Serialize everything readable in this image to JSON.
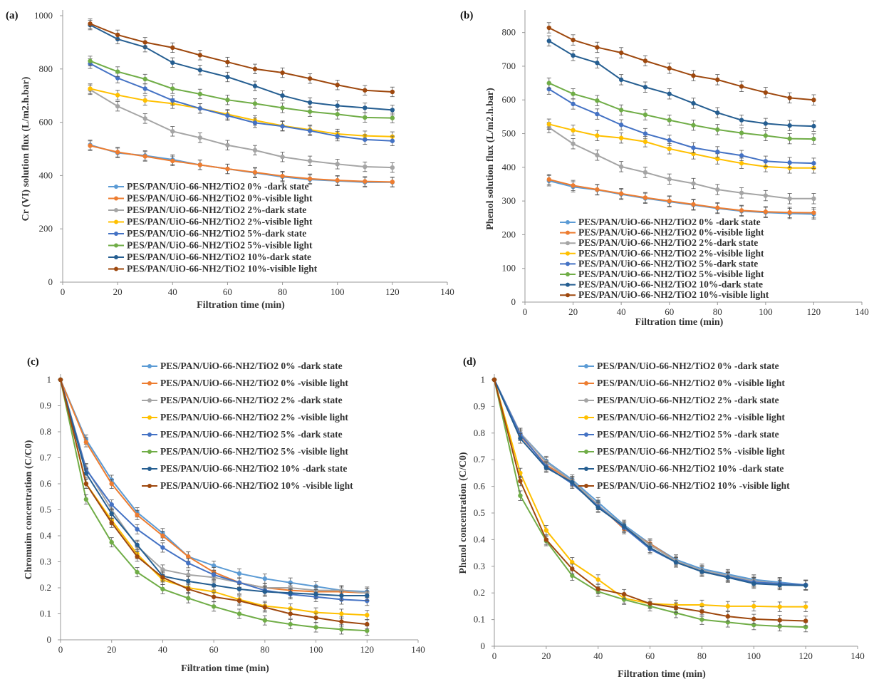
{
  "colors": {
    "s0": "#5B9BD5",
    "s1": "#ED7D31",
    "s2": "#A5A5A5",
    "s3": "#FFC000",
    "s4": "#4472C4",
    "s5": "#70AD47",
    "s6": "#255E91",
    "s7": "#9E480E"
  },
  "chart_data": [
    {
      "type": "line",
      "panel_label": "(a)",
      "xlabel": "Filtration time (min)",
      "ylabel": "Cr (VI) solution flux (L/m2.h.bar)",
      "xlim": [
        0,
        140
      ],
      "ylim": [
        0,
        1000
      ],
      "xticks": [
        "0",
        "20",
        "40",
        "60",
        "80",
        "100",
        "120",
        "140"
      ],
      "yticks": [
        "0",
        "200",
        "400",
        "600",
        "800",
        "1000"
      ],
      "legend_position": "bottom-center",
      "error_bars": true,
      "x": [
        10,
        20,
        30,
        40,
        50,
        60,
        70,
        80,
        90,
        100,
        110,
        120
      ],
      "series": [
        {
          "name": "PES/PAN/UiO-66-NH2/TiO2 0% -dark state",
          "values": [
            515,
            485,
            475,
            460,
            440,
            425,
            410,
            395,
            385,
            380,
            375,
            375
          ]
        },
        {
          "name": "PES/PAN/UiO-66-NH2/TiO2 0%-visible light",
          "values": [
            512,
            488,
            472,
            455,
            440,
            425,
            412,
            398,
            388,
            382,
            378,
            376
          ]
        },
        {
          "name": "PES/PAN/UiO-66-NH2/TiO2 2%-dark state",
          "values": [
            722,
            660,
            614,
            566,
            542,
            514,
            495,
            470,
            455,
            443,
            433,
            430
          ]
        },
        {
          "name": "PES/PAN/UiO-66-NH2/TiO2 2%-visible light",
          "values": [
            726,
            702,
            682,
            670,
            652,
            630,
            607,
            587,
            572,
            556,
            549,
            546
          ]
        },
        {
          "name": "PES/PAN/UiO-66-NH2/TiO2 5%-dark state",
          "values": [
            820,
            766,
            726,
            682,
            652,
            625,
            598,
            585,
            568,
            548,
            535,
            530
          ]
        },
        {
          "name": "PES/PAN/UiO-66-NH2/TiO2 5%-visible light",
          "values": [
            830,
            790,
            762,
            726,
            706,
            684,
            670,
            654,
            640,
            630,
            618,
            616
          ]
        },
        {
          "name": "PES/PAN/UiO-66-NH2/TiO2 10%-dark state",
          "values": [
            965,
            912,
            882,
            824,
            796,
            770,
            736,
            700,
            674,
            662,
            654,
            646
          ]
        },
        {
          "name": "PES/PAN/UiO-66-NH2/TiO2 10%-visible light",
          "values": [
            970,
            928,
            900,
            880,
            852,
            826,
            800,
            786,
            764,
            740,
            720,
            714
          ]
        }
      ]
    },
    {
      "type": "line",
      "panel_label": "(b)",
      "xlabel": "Filtration time (min)",
      "ylabel": "Phenol solution flux (L/m2.h.bar)",
      "xlim": [
        0,
        140
      ],
      "ylim": [
        0,
        850
      ],
      "xticks": [
        "0",
        "20",
        "40",
        "60",
        "80",
        "100",
        "120",
        "140"
      ],
      "yticks": [
        "0",
        "100",
        "200",
        "300",
        "400",
        "500",
        "600",
        "700",
        "800"
      ],
      "legend_position": "bottom-center",
      "error_bars": true,
      "x": [
        10,
        20,
        30,
        40,
        50,
        60,
        70,
        80,
        90,
        100,
        110,
        120
      ],
      "series": [
        {
          "name": "PES/PAN/UiO-66-NH2/TiO2 0% -dark state",
          "values": [
            360,
            342,
            333,
            320,
            308,
            298,
            288,
            278,
            270,
            266,
            263,
            261
          ]
        },
        {
          "name": "PES/PAN/UiO-66-NH2/TiO2 0%-visible light",
          "values": [
            364,
            346,
            334,
            322,
            310,
            300,
            290,
            280,
            272,
            268,
            266,
            265
          ]
        },
        {
          "name": "PES/PAN/UiO-66-NH2/TiO2 2%-dark state",
          "values": [
            518,
            470,
            436,
            402,
            385,
            365,
            352,
            334,
            324,
            316,
            307,
            307
          ]
        },
        {
          "name": "PES/PAN/UiO-66-NH2/TiO2 2%-visible light",
          "values": [
            528,
            510,
            494,
            487,
            476,
            455,
            440,
            425,
            412,
            402,
            398,
            398
          ]
        },
        {
          "name": "PES/PAN/UiO-66-NH2/TiO2 5%-dark state",
          "values": [
            632,
            588,
            558,
            526,
            500,
            480,
            458,
            446,
            435,
            418,
            414,
            412
          ]
        },
        {
          "name": "PES/PAN/UiO-66-NH2/TiO2 5%-visible light",
          "values": [
            650,
            618,
            598,
            570,
            556,
            540,
            525,
            512,
            502,
            494,
            485,
            484
          ]
        },
        {
          "name": "PES/PAN/UiO-66-NH2/TiO2 10%-dark state",
          "values": [
            775,
            732,
            710,
            660,
            638,
            618,
            590,
            562,
            540,
            530,
            524,
            522
          ]
        },
        {
          "name": "PES/PAN/UiO-66-NH2/TiO2 10%-visible light",
          "values": [
            814,
            778,
            756,
            740,
            716,
            694,
            672,
            660,
            640,
            622,
            606,
            600
          ]
        }
      ]
    },
    {
      "type": "line",
      "panel_label": "(c)",
      "xlabel": "Filtration time (min)",
      "ylabel": "Chromuim concentration (C/C0)",
      "xlim": [
        0,
        140
      ],
      "ylim": [
        0,
        1
      ],
      "xticks": [
        "0",
        "20",
        "40",
        "60",
        "80",
        "100",
        "120",
        "140"
      ],
      "yticks": [
        "0",
        "0.1",
        "0.2",
        "0.3",
        "0.4",
        "0.5",
        "0.6",
        "0.7",
        "0.8",
        "0.9",
        "1"
      ],
      "legend_position": "top-right",
      "error_bars": true,
      "x": [
        0,
        10,
        20,
        30,
        40,
        50,
        60,
        70,
        80,
        90,
        100,
        110,
        120
      ],
      "series": [
        {
          "name": "PES/PAN/UiO-66-NH2/TiO2 0% -dark state",
          "values": [
            1,
            0.77,
            0.615,
            0.49,
            0.41,
            0.32,
            0.285,
            0.255,
            0.235,
            0.22,
            0.205,
            0.19,
            0.185
          ]
        },
        {
          "name": "PES/PAN/UiO-66-NH2/TiO2 0% -visible light",
          "values": [
            1,
            0.76,
            0.6,
            0.48,
            0.4,
            0.32,
            0.26,
            0.22,
            0.2,
            0.19,
            0.185,
            0.185,
            0.18
          ]
        },
        {
          "name": "PES/PAN/UiO-66-NH2/TiO2 2% -dark state",
          "values": [
            1,
            0.66,
            0.5,
            0.36,
            0.27,
            0.25,
            0.24,
            0.22,
            0.2,
            0.2,
            0.19,
            0.19,
            0.18
          ]
        },
        {
          "name": "PES/PAN/UiO-66-NH2/TiO2 2% -visible light",
          "values": [
            1,
            0.6,
            0.46,
            0.33,
            0.23,
            0.2,
            0.185,
            0.155,
            0.13,
            0.12,
            0.105,
            0.1,
            0.095
          ]
        },
        {
          "name": "PES/PAN/UiO-66-NH2/TiO2 5% -dark state",
          "values": [
            1,
            0.655,
            0.52,
            0.425,
            0.355,
            0.295,
            0.25,
            0.22,
            0.19,
            0.175,
            0.165,
            0.155,
            0.15
          ]
        },
        {
          "name": "PES/PAN/UiO-66-NH2/TiO2 5% -visible light",
          "values": [
            1,
            0.54,
            0.375,
            0.26,
            0.195,
            0.16,
            0.128,
            0.1,
            0.075,
            0.06,
            0.048,
            0.04,
            0.035
          ]
        },
        {
          "name": "PES/PAN/UiO-66-NH2/TiO2 10% -dark state",
          "values": [
            1,
            0.64,
            0.485,
            0.365,
            0.245,
            0.225,
            0.21,
            0.195,
            0.185,
            0.18,
            0.175,
            0.17,
            0.17
          ]
        },
        {
          "name": "PES/PAN/UiO-66-NH2/TiO2 10% -visible light",
          "values": [
            1,
            0.6,
            0.45,
            0.32,
            0.24,
            0.195,
            0.165,
            0.15,
            0.125,
            0.1,
            0.085,
            0.07,
            0.06
          ]
        }
      ]
    },
    {
      "type": "line",
      "panel_label": "(d)",
      "xlabel": "Filtration time (min)",
      "ylabel": "Phenol concentration (C/C0)",
      "xlim": [
        0,
        140
      ],
      "ylim": [
        0,
        1
      ],
      "xticks": [
        "0",
        "20",
        "40",
        "60",
        "80",
        "100",
        "120",
        "140"
      ],
      "yticks": [
        "0",
        "0.1",
        "0.2",
        "0.3",
        "0.4",
        "0.5",
        "0.6",
        "0.7",
        "0.8",
        "0.9",
        "1"
      ],
      "legend_position": "top-right",
      "error_bars": true,
      "x": [
        0,
        10,
        20,
        30,
        40,
        50,
        60,
        70,
        80,
        90,
        100,
        110,
        120
      ],
      "series": [
        {
          "name": "PES/PAN/UiO-66-NH2/TiO2 0% -dark state",
          "values": [
            1,
            0.8,
            0.695,
            0.625,
            0.54,
            0.455,
            0.385,
            0.325,
            0.29,
            0.27,
            0.25,
            0.24,
            0.23
          ]
        },
        {
          "name": "PES/PAN/UiO-66-NH2/TiO2 0% -visible light",
          "values": [
            1,
            0.79,
            0.68,
            0.62,
            0.53,
            0.44,
            0.385,
            0.32,
            0.28,
            0.26,
            0.24,
            0.235,
            0.23
          ]
        },
        {
          "name": "PES/PAN/UiO-66-NH2/TiO2 2% -dark state",
          "values": [
            1,
            0.8,
            0.69,
            0.62,
            0.53,
            0.45,
            0.38,
            0.32,
            0.285,
            0.265,
            0.245,
            0.235,
            0.23
          ]
        },
        {
          "name": "PES/PAN/UiO-66-NH2/TiO2 2% -visible light",
          "values": [
            1,
            0.65,
            0.435,
            0.315,
            0.25,
            0.18,
            0.16,
            0.155,
            0.155,
            0.15,
            0.15,
            0.148,
            0.148
          ]
        },
        {
          "name": "PES/PAN/UiO-66-NH2/TiO2 5% -dark state",
          "values": [
            1,
            0.795,
            0.675,
            0.61,
            0.525,
            0.445,
            0.365,
            0.315,
            0.28,
            0.26,
            0.24,
            0.235,
            0.23
          ]
        },
        {
          "name": "PES/PAN/UiO-66-NH2/TiO2 5% -visible light",
          "values": [
            1,
            0.565,
            0.395,
            0.265,
            0.205,
            0.175,
            0.15,
            0.125,
            0.1,
            0.09,
            0.08,
            0.075,
            0.072
          ]
        },
        {
          "name": "PES/PAN/UiO-66-NH2/TiO2 10% -dark state",
          "values": [
            1,
            0.78,
            0.67,
            0.615,
            0.52,
            0.45,
            0.37,
            0.315,
            0.28,
            0.258,
            0.235,
            0.23,
            0.228
          ]
        },
        {
          "name": "PES/PAN/UiO-66-NH2/TiO2 10% -visible light",
          "values": [
            1,
            0.62,
            0.4,
            0.29,
            0.215,
            0.195,
            0.16,
            0.145,
            0.13,
            0.112,
            0.102,
            0.098,
            0.095
          ]
        }
      ]
    }
  ]
}
